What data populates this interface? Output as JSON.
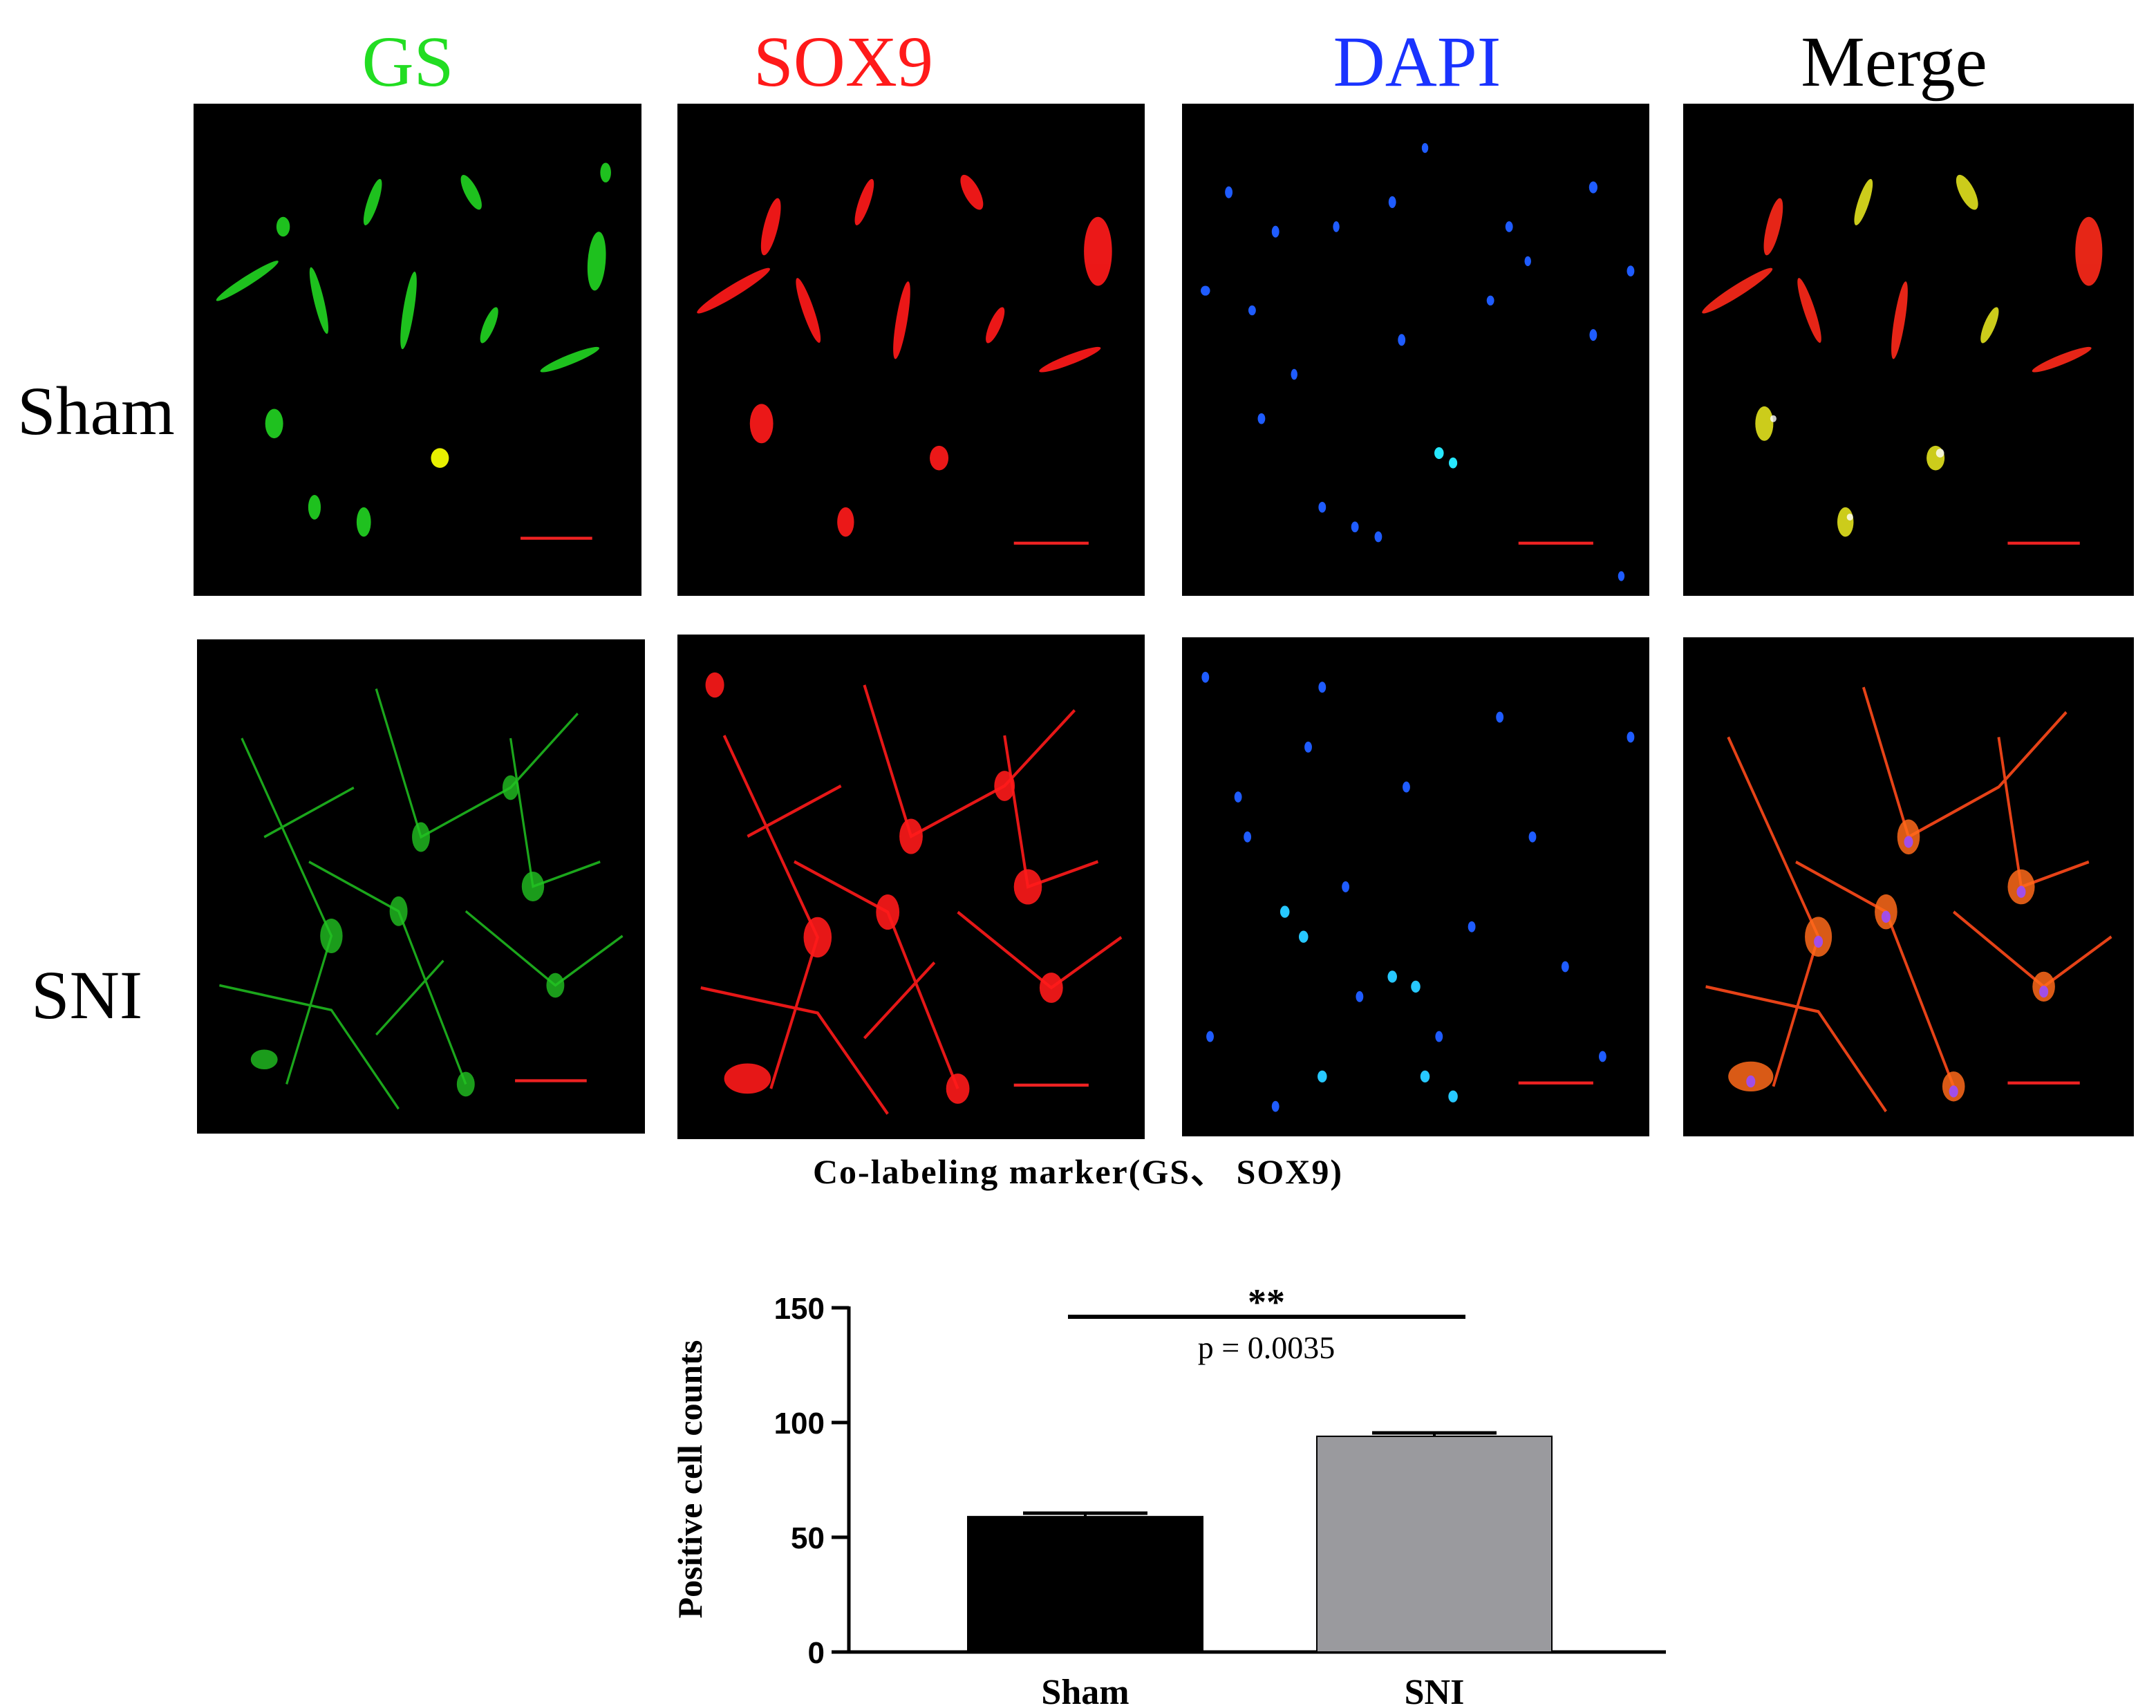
{
  "column_headers": [
    {
      "label": "GS",
      "color": "#22dd22"
    },
    {
      "label": "SOX9",
      "color": "#ff1a1a"
    },
    {
      "label": "DAPI",
      "color": "#1a33ff"
    },
    {
      "label": "Merge",
      "color": "#000000"
    }
  ],
  "row_labels": [
    "Sham",
    "SNI"
  ],
  "caption": "Co-labeling marker(GS、 SOX9)",
  "chart_data": {
    "type": "bar",
    "categories": [
      "Sham",
      "SNI"
    ],
    "values": [
      59,
      94
    ],
    "errors": [
      1.5,
      1.5
    ],
    "bar_colors": [
      "#000000",
      "#9a9a9e"
    ],
    "ylabel": "Positive cell counts",
    "xlabel": "",
    "ylim": [
      0,
      150
    ],
    "yticks": [
      0,
      50,
      100,
      150
    ],
    "significance": {
      "stars": "**",
      "p_text": "p = 0.0035"
    }
  }
}
